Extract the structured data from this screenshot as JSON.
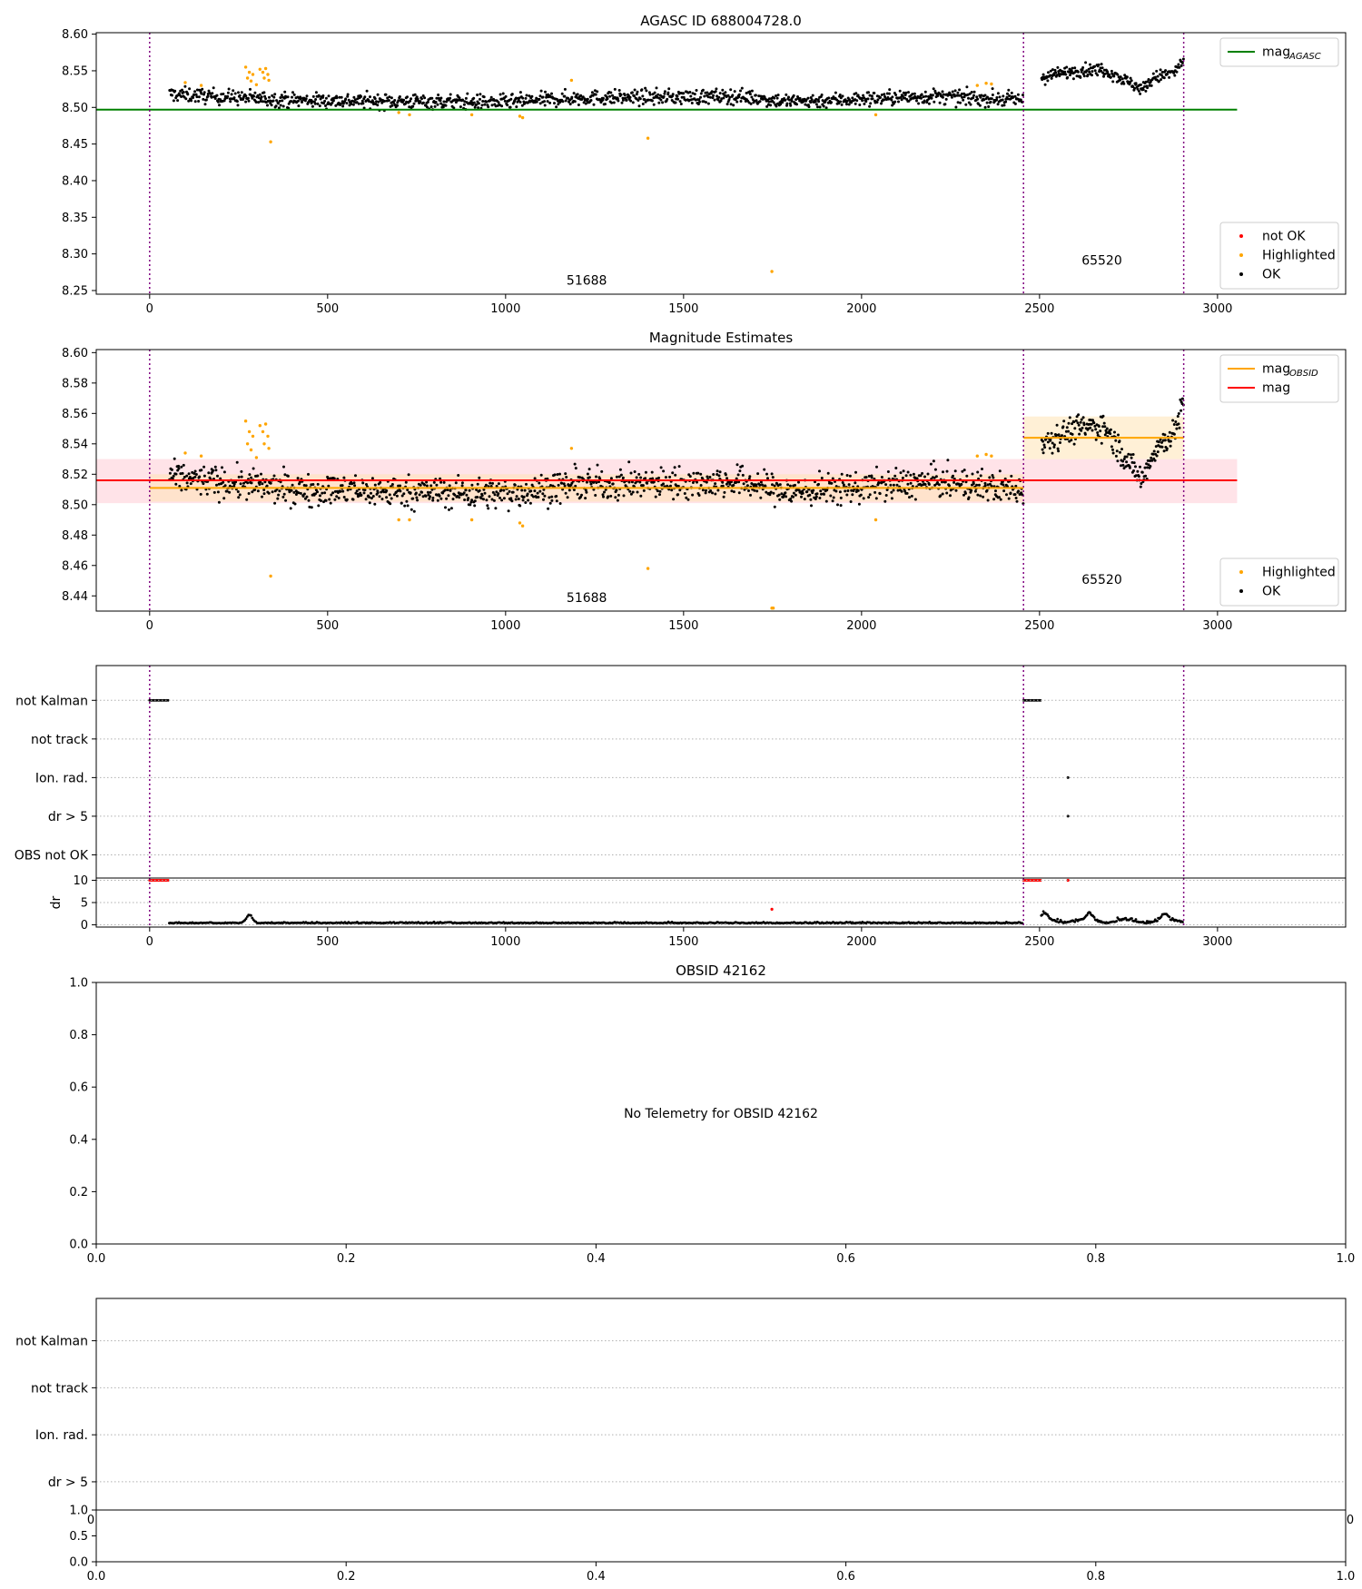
{
  "colors": {
    "ok": "#000000",
    "highlighted": "#ffa500",
    "not_ok": "#ff0000",
    "agasc_line": "#008000",
    "obsid_line": "#ffa500",
    "mag_line": "#ff0000",
    "mag_band": "#ffc0cb",
    "obsid_band": "#ffe4b5",
    "vline": "#800080",
    "grid": "#b0b0b0"
  },
  "chart_data": [
    {
      "id": "agasc",
      "type": "scatter",
      "title": "AGASC ID 688004728.0",
      "xlim": [
        -150,
        3360
      ],
      "ylim": [
        8.245,
        8.602
      ],
      "xticks": [
        0,
        500,
        1000,
        1500,
        2000,
        2500,
        3000
      ],
      "xtick_labels": [
        "0",
        "500",
        "1000",
        "1500",
        "2000",
        "2500",
        "3000"
      ],
      "yticks": [
        8.25,
        8.3,
        8.35,
        8.4,
        8.45,
        8.5,
        8.55,
        8.6
      ],
      "ytick_labels": [
        "8.25",
        "8.30",
        "8.35",
        "8.40",
        "8.45",
        "8.50",
        "8.55",
        "8.60"
      ],
      "vlines": [
        0,
        2455,
        2905
      ],
      "hlines": [
        {
          "y": 8.497,
          "x": [
            -150,
            3055
          ],
          "color": "agasc_line"
        }
      ],
      "annotations": [
        {
          "text": "51688",
          "x": 1228,
          "y": 8.258
        },
        {
          "text": "65520",
          "x": 2675,
          "y": 8.285
        }
      ],
      "legend_top": [
        {
          "label": "mag",
          "sub": "AGASC",
          "kind": "line",
          "color": "agasc_line"
        }
      ],
      "legend_bottom": [
        {
          "label": "not OK",
          "kind": "dot",
          "color": "not_ok"
        },
        {
          "label": "Highlighted",
          "kind": "dot",
          "color": "highlighted"
        },
        {
          "label": "OK",
          "kind": "dot",
          "color": "ok"
        }
      ],
      "series": [
        {
          "name": "OK",
          "segments": [
            {
              "x": [
                55,
                2455
              ],
              "profile": [
                [
                  55,
                  8.518
                ],
                [
                  400,
                  8.51
                ],
                [
                  1000,
                  8.507
                ],
                [
                  1200,
                  8.513
                ],
                [
                  1660,
                  8.515
                ],
                [
                  1800,
                  8.508
                ],
                [
                  2200,
                  8.515
                ],
                [
                  2455,
                  8.51
                ]
              ],
              "spread": 0.007,
              "n": 1250
            },
            {
              "x": [
                2505,
                2905
              ],
              "profile": [
                [
                  2505,
                  8.541
                ],
                [
                  2600,
                  8.55
                ],
                [
                  2680,
                  8.552
                ],
                [
                  2760,
                  8.532
                ],
                [
                  2790,
                  8.525
                ],
                [
                  2820,
                  8.54
                ],
                [
                  2880,
                  8.548
                ],
                [
                  2905,
                  8.565
                ]
              ],
              "spread": 0.006,
              "n": 230
            }
          ]
        },
        {
          "name": "Highlighted",
          "points": [
            [
              100,
              8.534
            ],
            [
              145,
              8.53
            ],
            [
              270,
              8.555
            ],
            [
              275,
              8.54
            ],
            [
              280,
              8.548
            ],
            [
              285,
              8.536
            ],
            [
              290,
              8.545
            ],
            [
              300,
              8.531
            ],
            [
              310,
              8.552
            ],
            [
              318,
              8.548
            ],
            [
              322,
              8.54
            ],
            [
              326,
              8.553
            ],
            [
              332,
              8.545
            ],
            [
              335,
              8.537
            ],
            [
              340,
              8.453
            ],
            [
              700,
              8.493
            ],
            [
              730,
              8.49
            ],
            [
              905,
              8.49
            ],
            [
              1040,
              8.488
            ],
            [
              1048,
              8.486
            ],
            [
              1185,
              8.537
            ],
            [
              1400,
              8.458
            ],
            [
              1748,
              8.276
            ],
            [
              2040,
              8.49
            ],
            [
              2325,
              8.53
            ],
            [
              2350,
              8.533
            ],
            [
              2365,
              8.532
            ]
          ]
        }
      ]
    },
    {
      "id": "mag",
      "type": "scatter",
      "title": "Magnitude Estimates",
      "xlim": [
        -150,
        3360
      ],
      "ylim": [
        8.43,
        8.602
      ],
      "xticks": [
        0,
        500,
        1000,
        1500,
        2000,
        2500,
        3000
      ],
      "xtick_labels": [
        "0",
        "500",
        "1000",
        "1500",
        "2000",
        "2500",
        "3000"
      ],
      "yticks": [
        8.44,
        8.46,
        8.48,
        8.5,
        8.52,
        8.54,
        8.56,
        8.58,
        8.6
      ],
      "ytick_labels": [
        "8.44",
        "8.46",
        "8.48",
        "8.50",
        "8.52",
        "8.54",
        "8.56",
        "8.58",
        "8.60"
      ],
      "vlines": [
        0,
        2455,
        2905
      ],
      "bands": [
        {
          "x": [
            -150,
            3055
          ],
          "y": [
            8.501,
            8.53
          ],
          "color": "mag_band",
          "opacity": 0.45
        },
        {
          "x": [
            0,
            2455
          ],
          "y": [
            8.502,
            8.52
          ],
          "color": "obsid_band",
          "opacity": 0.55
        },
        {
          "x": [
            2455,
            2905
          ],
          "y": [
            8.53,
            8.558
          ],
          "color": "obsid_band",
          "opacity": 0.55
        }
      ],
      "hlines": [
        {
          "y": 8.516,
          "x": [
            -150,
            3055
          ],
          "color": "mag_line"
        },
        {
          "y": 8.511,
          "x": [
            0,
            2455
          ],
          "color": "obsid_line"
        },
        {
          "y": 8.544,
          "x": [
            2455,
            2905
          ],
          "color": "obsid_line"
        }
      ],
      "annotations": [
        {
          "text": "51688",
          "x": 1228,
          "y": 8.436
        },
        {
          "text": "65520",
          "x": 2675,
          "y": 8.448
        }
      ],
      "legend_top": [
        {
          "label": "mag",
          "sub": "OBSID",
          "kind": "line",
          "color": "obsid_line"
        },
        {
          "label": "mag",
          "sub": "",
          "kind": "line",
          "color": "mag_line"
        }
      ],
      "legend_bottom": [
        {
          "label": "Highlighted",
          "kind": "dot",
          "color": "highlighted"
        },
        {
          "label": "OK",
          "kind": "dot",
          "color": "ok"
        }
      ],
      "series": [
        {
          "name": "OK",
          "segments": [
            {
              "x": [
                55,
                2455
              ],
              "profile": [
                [
                  55,
                  8.518
                ],
                [
                  400,
                  8.51
                ],
                [
                  1000,
                  8.507
                ],
                [
                  1200,
                  8.513
                ],
                [
                  1660,
                  8.515
                ],
                [
                  1800,
                  8.508
                ],
                [
                  2200,
                  8.515
                ],
                [
                  2455,
                  8.51
                ]
              ],
              "spread": 0.007,
              "n": 1250
            },
            {
              "x": [
                2505,
                2905
              ],
              "profile": [
                [
                  2505,
                  8.541
                ],
                [
                  2600,
                  8.55
                ],
                [
                  2680,
                  8.552
                ],
                [
                  2760,
                  8.524
                ],
                [
                  2790,
                  8.517
                ],
                [
                  2820,
                  8.535
                ],
                [
                  2880,
                  8.548
                ],
                [
                  2905,
                  8.567
                ]
              ],
              "spread": 0.006,
              "n": 230
            }
          ]
        },
        {
          "name": "Highlighted",
          "points": [
            [
              100,
              8.534
            ],
            [
              145,
              8.532
            ],
            [
              270,
              8.555
            ],
            [
              275,
              8.54
            ],
            [
              280,
              8.548
            ],
            [
              285,
              8.536
            ],
            [
              290,
              8.545
            ],
            [
              300,
              8.531
            ],
            [
              310,
              8.552
            ],
            [
              318,
              8.548
            ],
            [
              322,
              8.54
            ],
            [
              326,
              8.553
            ],
            [
              332,
              8.545
            ],
            [
              335,
              8.537
            ],
            [
              340,
              8.453
            ],
            [
              700,
              8.49
            ],
            [
              730,
              8.49
            ],
            [
              905,
              8.49
            ],
            [
              1040,
              8.488
            ],
            [
              1048,
              8.486
            ],
            [
              1185,
              8.537
            ],
            [
              1400,
              8.458
            ],
            [
              1748,
              8.432
            ],
            [
              1752,
              8.432
            ],
            [
              2040,
              8.49
            ],
            [
              2325,
              8.532
            ],
            [
              2350,
              8.533
            ],
            [
              2365,
              8.532
            ]
          ]
        }
      ]
    },
    {
      "id": "flags1",
      "type": "scatter",
      "title": "",
      "xlim": [
        -150,
        3360
      ],
      "categories": [
        "not Kalman",
        "not track",
        "Ion. rad.",
        "dr > 5",
        "OBS not OK"
      ],
      "vlines": [
        0,
        2455,
        2905
      ],
      "flags": [
        {
          "category": "not Kalman",
          "x": [
            [
              0,
              55
            ],
            [
              2455,
              2505
            ]
          ],
          "color": "ok"
        },
        {
          "category": "Ion. rad.",
          "points": [
            2580
          ],
          "color": "ok"
        },
        {
          "category": "dr > 5",
          "points": [
            2580
          ],
          "color": "ok"
        }
      ]
    },
    {
      "id": "dr",
      "type": "scatter",
      "title": "",
      "ylabel": "dr",
      "xlim": [
        -150,
        3360
      ],
      "ylim": [
        -0.5,
        10.5
      ],
      "xticks": [
        0,
        500,
        1000,
        1500,
        2000,
        2500,
        3000
      ],
      "xtick_labels": [
        "0",
        "500",
        "1000",
        "1500",
        "2000",
        "2500",
        "3000"
      ],
      "yticks": [
        0,
        5,
        10
      ],
      "ytick_labels": [
        "0",
        "5",
        "10"
      ],
      "vlines": [
        0,
        2455,
        2905
      ],
      "series": [
        {
          "name": "not OK",
          "clipped": [
            [
              0,
              55
            ],
            [
              2455,
              2505
            ]
          ],
          "points": [
            [
              2580,
              10
            ],
            [
              1748,
              3.5
            ]
          ]
        },
        {
          "name": "OK",
          "segments": [
            {
              "x": [
                55,
                2455
              ],
              "base": 0.35,
              "spread": 0.12,
              "bumps": [
                [
                  280,
                  1.8
                ]
              ],
              "n": 700
            },
            {
              "x": [
                2505,
                2905
              ],
              "base": 0.7,
              "spread": 0.3,
              "bumps": [
                [
                  2515,
                  1.5
                ],
                [
                  2640,
                  1.5
                ],
                [
                  2850,
                  1.3
                ]
              ],
              "n": 140
            }
          ]
        }
      ]
    },
    {
      "id": "obsid",
      "type": "scatter",
      "title": "OBSID 42162",
      "message": "No Telemetry for OBSID 42162",
      "xlim": [
        0,
        1
      ],
      "ylim": [
        0,
        1
      ],
      "xticks": [
        0,
        0.2,
        0.4,
        0.6,
        0.8,
        1.0
      ],
      "xtick_labels": [
        "0.0",
        "0.2",
        "0.4",
        "0.6",
        "0.8",
        "1.0"
      ],
      "yticks": [
        0,
        0.2,
        0.4,
        0.6,
        0.8,
        1.0
      ],
      "ytick_labels": [
        "0.0",
        "0.2",
        "0.4",
        "0.6",
        "0.8",
        "1.0"
      ]
    },
    {
      "id": "flags2",
      "type": "scatter",
      "title": "",
      "categories": [
        "not Kalman",
        "not track",
        "Ion. rad.",
        "dr > 5"
      ]
    },
    {
      "id": "bottom",
      "type": "scatter",
      "title": "",
      "xlim": [
        0,
        1
      ],
      "ylim": [
        0,
        1
      ],
      "xticks": [
        0,
        0.2,
        0.4,
        0.6,
        0.8,
        1.0
      ],
      "xtick_labels": [
        "0.0",
        "0.2",
        "0.4",
        "0.6",
        "0.8",
        "1.0"
      ],
      "yticks": [
        0,
        0.5,
        1.0
      ],
      "ytick_labels": [
        "0.0",
        "0.5",
        "1.0"
      ],
      "overlap_labels": [
        "0",
        "0"
      ]
    }
  ]
}
